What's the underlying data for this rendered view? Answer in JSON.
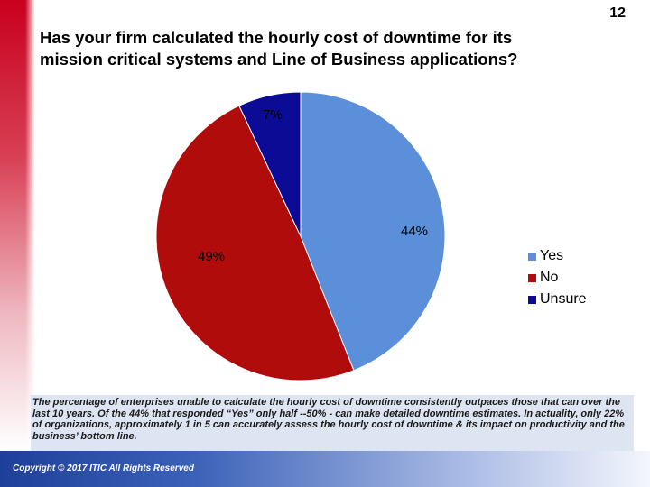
{
  "page_number": "12",
  "title_line1": "Has your firm calculated the hourly cost of downtime for its",
  "title_line2": "mission critical systems and Line of Business applications?",
  "chart_data": {
    "type": "pie",
    "title": "Has your firm calculated the hourly cost of downtime for its mission critical systems and Line of Business applications?",
    "legend_position": "right",
    "slices": [
      {
        "label": "Yes",
        "value": 44,
        "display": "44%",
        "color": "#5b8fd9"
      },
      {
        "label": "No",
        "value": 49,
        "display": "49%",
        "color": "#b00c0c"
      },
      {
        "label": "Unsure",
        "value": 7,
        "display": "7%",
        "color": "#0b0b96"
      }
    ]
  },
  "note": "The percentage of enterprises unable to calculate the hourly cost of downtime consistently outpaces those that can over the last 10 years. Of the 44% that responded “Yes” only half --50% - can make detailed downtime estimates. In actuality, only 22% of organizations, approximately 1 in 5 can accurately assess the hourly cost of downtime & its impact on productivity and the business’ bottom line.",
  "copyright": "Copyright © 2017 ITIC All Rights Reserved"
}
